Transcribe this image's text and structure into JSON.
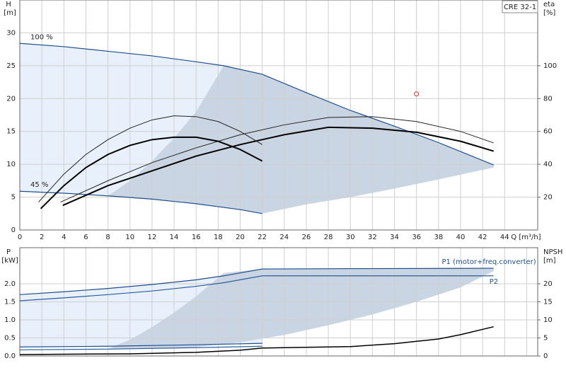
{
  "chart_data": [
    {
      "type": "line",
      "title": "CRE 32-1",
      "ylabel": "H",
      "yunit": "[m]",
      "y2label": "eta",
      "y2unit": "[%]",
      "xlabel": "Q [m³/h]",
      "xlim": [
        0,
        47
      ],
      "xticks": [
        0,
        2,
        4,
        6,
        8,
        10,
        12,
        14,
        16,
        18,
        20,
        22,
        24,
        26,
        28,
        30,
        32,
        34,
        36,
        38,
        40,
        42,
        44
      ],
      "ylim": [
        0,
        35
      ],
      "yticks": [
        0,
        5,
        10,
        15,
        20,
        25,
        30
      ],
      "y2lim": [
        0,
        140
      ],
      "y2ticks": [
        20,
        40,
        60,
        80,
        100
      ],
      "grid": true,
      "areas": [
        {
          "color": "#e8f1fb",
          "x": [
            0,
            4,
            8,
            12,
            16,
            18.5,
            22,
            22,
            20,
            16,
            12,
            8,
            4,
            0
          ],
          "y": [
            28.4,
            27.9,
            27.2,
            26.5,
            25.6,
            25.0,
            23.7,
            2.5,
            3.1,
            4.0,
            4.7,
            5.2,
            5.6,
            5.9
          ]
        },
        {
          "color": "#c9d5e3",
          "x": [
            8,
            10,
            12,
            14,
            16,
            18.5,
            22,
            26,
            30,
            34,
            38,
            43,
            43,
            38,
            34,
            30,
            26,
            22,
            20,
            16,
            12,
            10
          ],
          "y": [
            5.2,
            7.5,
            10.5,
            14,
            18,
            25.0,
            23.7,
            20.9,
            18.2,
            15.8,
            13.3,
            9.9,
            9.5,
            7.7,
            6.3,
            5.0,
            3.9,
            2.5,
            3.1,
            4.0,
            4.7,
            5.0
          ]
        }
      ],
      "series": [
        {
          "name": "100 %",
          "label_at": "above_start",
          "color": "#1f4e8c",
          "width": 1.2,
          "x": [
            0,
            4,
            8,
            12,
            16,
            18.5,
            22,
            26,
            30,
            34,
            38,
            43
          ],
          "values": [
            28.4,
            27.9,
            27.2,
            26.5,
            25.6,
            25.0,
            23.7,
            20.9,
            18.2,
            15.8,
            13.3,
            9.9
          ]
        },
        {
          "name": "45 %",
          "label_at": "above_start",
          "color": "#1f4e8c",
          "width": 1.2,
          "x": [
            0,
            4,
            8,
            12,
            16,
            20,
            22
          ],
          "values": [
            5.9,
            5.6,
            5.2,
            4.7,
            4.0,
            3.1,
            2.5
          ]
        },
        {
          "axis": "y2",
          "color": "#222222",
          "width": 1,
          "x": [
            3.7,
            8,
            12,
            16,
            20,
            24,
            28,
            32,
            36,
            40,
            43
          ],
          "values": [
            17,
            30,
            41,
            50,
            58,
            64,
            68.5,
            69,
            66,
            60,
            53
          ]
        },
        {
          "axis": "y2",
          "color": "#000000",
          "width": 2,
          "x": [
            3.9,
            8,
            12,
            16,
            20,
            24,
            28,
            32,
            36,
            40,
            43
          ],
          "values": [
            15,
            27,
            36,
            45,
            52,
            58,
            62.5,
            62,
            59.5,
            54,
            48
          ]
        },
        {
          "axis": "y2",
          "color": "#222222",
          "width": 1,
          "x": [
            1.7,
            4,
            6,
            8,
            10,
            12,
            14,
            16,
            18,
            20,
            22
          ],
          "values": [
            17,
            34,
            46,
            55,
            62,
            67,
            69.5,
            69,
            66,
            60,
            52
          ]
        },
        {
          "axis": "y2",
          "color": "#000000",
          "width": 2,
          "x": [
            1.9,
            4,
            6,
            8,
            10,
            12,
            14,
            16,
            18,
            20,
            22
          ],
          "values": [
            13,
            27,
            38,
            46,
            51.5,
            55,
            56.5,
            56.5,
            54,
            49,
            42
          ]
        }
      ],
      "points": [
        {
          "x": 36,
          "y": 20.7,
          "color": "#e03030"
        }
      ]
    },
    {
      "type": "line",
      "ylabel": "P",
      "yunit": "[kW]",
      "y2label": "NPSH",
      "y2unit": "[m]",
      "xlim": [
        0,
        47
      ],
      "xgrid": [
        0,
        2,
        4,
        6,
        8,
        10,
        12,
        14,
        16,
        18,
        20,
        22,
        24,
        26,
        28,
        30,
        32,
        34,
        36,
        38,
        40,
        42,
        44,
        46
      ],
      "ylim": [
        0,
        3
      ],
      "yticks": [
        {
          "value": 0,
          "label": "0.0"
        },
        0.5,
        {
          "value": 1,
          "label": "1.0"
        },
        1.5,
        {
          "value": 2,
          "label": "2.0"
        }
      ],
      "y2lim": [
        0,
        30
      ],
      "y2ticks": [
        0,
        5,
        10,
        15,
        20
      ],
      "grid": true,
      "areas": [
        {
          "color": "#e8f1fb",
          "x": [
            0,
            8,
            16,
            22,
            22,
            16,
            8,
            0
          ],
          "y": [
            1.7,
            1.87,
            2.11,
            2.41,
            0.35,
            0.31,
            0.27,
            0.25
          ]
        },
        {
          "color": "#c9d5e3",
          "x": [
            8,
            10,
            12,
            14,
            16,
            18.5,
            22,
            30,
            43,
            43,
            40,
            36,
            32,
            28,
            24,
            20,
            16,
            12
          ],
          "y": [
            0.2,
            0.45,
            0.8,
            1.2,
            1.65,
            2.3,
            2.41,
            2.42,
            2.43,
            2.35,
            1.9,
            1.5,
            1.15,
            0.85,
            0.58,
            0.38,
            0.25,
            0.2
          ]
        }
      ],
      "series": [
        {
          "name": "P1 (motor+freq.converter)",
          "label_at": "above_end",
          "color": "#1f4e8c",
          "width": 1.2,
          "x": [
            0,
            4,
            8,
            12,
            16,
            18.5,
            22,
            30,
            43
          ],
          "values": [
            1.7,
            1.78,
            1.87,
            1.98,
            2.11,
            2.22,
            2.41,
            2.42,
            2.43
          ]
        },
        {
          "name": "P2",
          "label_at": "below_end",
          "color": "#2a5e9e",
          "width": 1.2,
          "x": [
            0,
            4,
            8,
            12,
            16,
            18.5,
            22,
            30,
            43
          ],
          "values": [
            1.53,
            1.61,
            1.7,
            1.8,
            1.93,
            2.03,
            2.22,
            2.22,
            2.22
          ]
        },
        {
          "color": "#1f4e8c",
          "width": 1.2,
          "x": [
            0,
            8,
            16,
            22
          ],
          "values": [
            0.25,
            0.27,
            0.31,
            0.35
          ]
        },
        {
          "color": "#2a5e9e",
          "width": 1.2,
          "x": [
            0,
            8,
            16,
            22
          ],
          "values": [
            0.17,
            0.19,
            0.23,
            0.27
          ]
        },
        {
          "axis": "y2",
          "color": "#000000",
          "width": 1.5,
          "x": [
            0,
            10,
            16,
            20,
            22,
            26,
            30,
            34,
            38,
            40,
            43
          ],
          "values": [
            0.4,
            0.6,
            1.0,
            1.6,
            2.2,
            2.4,
            2.6,
            3.4,
            4.7,
            5.9,
            8.1
          ]
        }
      ]
    }
  ]
}
